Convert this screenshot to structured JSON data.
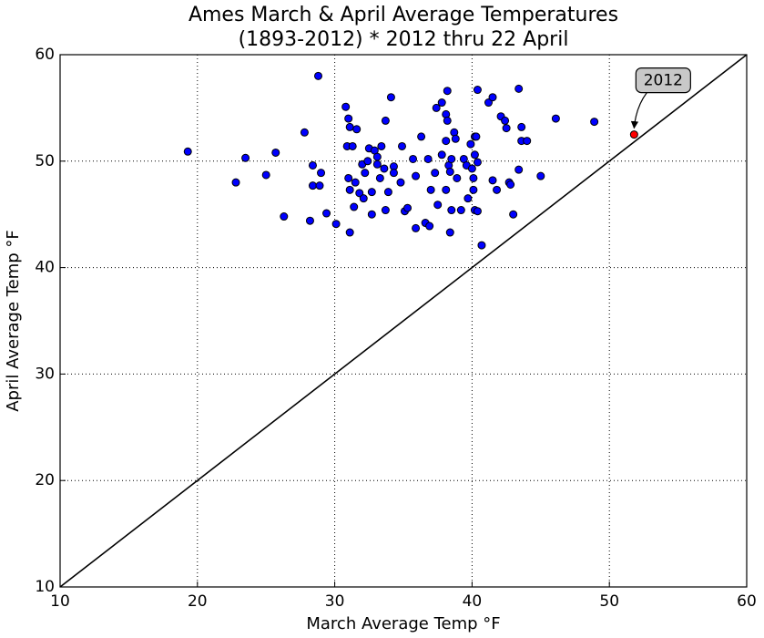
{
  "chart_data": {
    "type": "scatter",
    "title": [
      "Ames March & April Average Temperatures",
      "(1893-2012) * 2012 thru 22 April"
    ],
    "xlabel": "March Average Temp °F",
    "ylabel": "April Average Temp °F",
    "xlim": [
      10,
      60
    ],
    "ylim": [
      10,
      60
    ],
    "xticks": [
      10,
      20,
      30,
      40,
      50,
      60
    ],
    "yticks": [
      10,
      20,
      30,
      40,
      50,
      60
    ],
    "grid": true,
    "reference_line": {
      "x": [
        10,
        60
      ],
      "y": [
        10,
        60
      ],
      "color": "#000000"
    },
    "series": [
      {
        "color": "#0000ff",
        "x": [
          19.3,
          23.5,
          22.8,
          25.0,
          25.7,
          26.3,
          27.8,
          28.8,
          28.4,
          29.0,
          28.4,
          28.9,
          28.2,
          29.4,
          30.1,
          30.8,
          31.0,
          31.1,
          30.9,
          31.3,
          31.0,
          31.1,
          31.1,
          31.6,
          31.5,
          31.8,
          31.4,
          32.0,
          32.1,
          32.2,
          32.5,
          32.4,
          32.7,
          32.7,
          32.9,
          33.1,
          33.1,
          33.4,
          33.3,
          33.6,
          33.7,
          33.9,
          33.7,
          34.1,
          34.3,
          34.3,
          34.8,
          34.9,
          35.1,
          35.3,
          35.7,
          35.9,
          35.9,
          36.3,
          36.8,
          36.6,
          36.9,
          37.0,
          37.3,
          37.4,
          37.5,
          37.8,
          37.8,
          38.1,
          38.1,
          38.1,
          38.2,
          38.2,
          38.3,
          38.4,
          38.5,
          38.5,
          38.4,
          38.7,
          38.8,
          38.9,
          39.2,
          39.4,
          39.6,
          39.7,
          39.9,
          40.0,
          40.1,
          40.2,
          40.2,
          40.3,
          40.4,
          40.1,
          40.2,
          40.4,
          40.4,
          40.7,
          41.2,
          41.5,
          41.5,
          41.8,
          42.1,
          42.4,
          42.5,
          42.7,
          42.8,
          43.0,
          43.4,
          43.4,
          43.6,
          43.6,
          44.0,
          45.0,
          46.1,
          48.9
        ],
        "values": [
          50.9,
          50.3,
          48.0,
          48.7,
          50.8,
          44.8,
          52.7,
          58.0,
          49.6,
          48.9,
          47.7,
          47.7,
          44.4,
          45.1,
          44.1,
          55.1,
          54.0,
          53.2,
          51.4,
          51.4,
          48.4,
          47.3,
          43.3,
          53.0,
          48.0,
          47.0,
          45.7,
          49.7,
          46.5,
          48.9,
          51.2,
          50.0,
          47.1,
          45.0,
          51.0,
          50.4,
          49.7,
          51.4,
          48.4,
          49.3,
          53.8,
          47.1,
          45.4,
          56.0,
          49.5,
          48.9,
          48.0,
          51.4,
          45.3,
          45.6,
          50.2,
          48.6,
          43.7,
          52.3,
          50.2,
          44.2,
          43.9,
          47.3,
          48.9,
          55.0,
          45.9,
          55.5,
          50.6,
          47.3,
          54.4,
          51.9,
          56.6,
          53.8,
          49.6,
          49.0,
          50.2,
          45.4,
          43.3,
          52.7,
          52.1,
          48.4,
          45.4,
          50.2,
          49.6,
          46.5,
          51.6,
          49.3,
          48.4,
          50.6,
          52.3,
          52.3,
          49.9,
          47.3,
          45.4,
          45.3,
          56.7,
          42.1,
          55.5,
          56.0,
          48.2,
          47.3,
          54.2,
          53.8,
          53.1,
          48.0,
          47.8,
          45.0,
          56.8,
          49.2,
          53.2,
          51.9,
          51.9,
          48.6,
          54.0,
          53.7
        ]
      },
      {
        "name": "2012",
        "color": "#ff0000",
        "x": [
          51.8
        ],
        "values": [
          52.5
        ]
      }
    ]
  }
}
